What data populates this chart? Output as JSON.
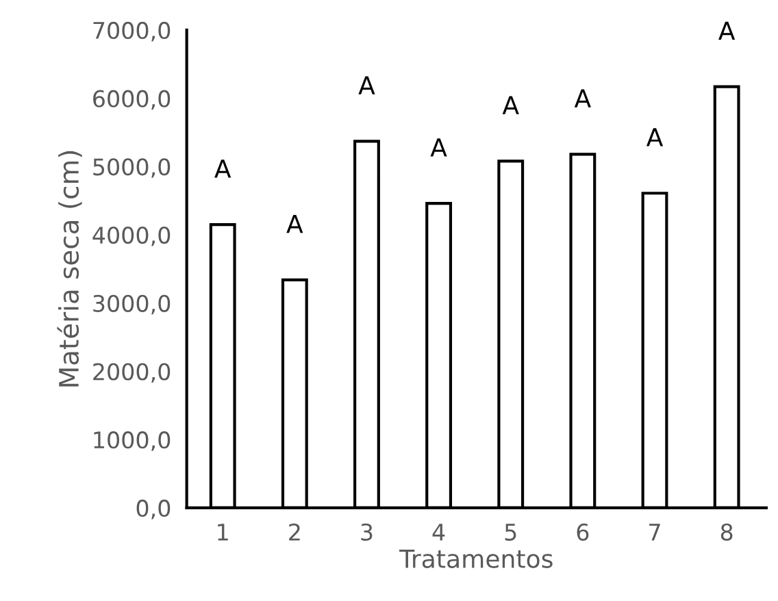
{
  "chart_data": {
    "type": "bar",
    "xlabel": "Tratamentos",
    "ylabel": "Matéria seca (cm)",
    "categories": [
      "1",
      "2",
      "3",
      "4",
      "5",
      "6",
      "7",
      "8"
    ],
    "series": [
      {
        "color": "#ffffff",
        "values": [
          4150,
          3340,
          5370,
          4460,
          5080,
          5180,
          4610,
          6170
        ]
      }
    ],
    "ylim": [
      0,
      7000
    ],
    "yticks": [
      {
        "value": 0,
        "label": "0,0"
      },
      {
        "value": 1000,
        "label": "1000,0"
      },
      {
        "value": 2000,
        "label": "2000,0"
      },
      {
        "value": 3000,
        "label": "3000,0"
      },
      {
        "value": 4000,
        "label": "4000,0"
      },
      {
        "value": 5000,
        "label": "5000,0"
      },
      {
        "value": 6000,
        "label": "6000,0"
      },
      {
        "value": 7000,
        "label": "7000,0"
      }
    ],
    "grid": false,
    "legend": false,
    "annotations": [
      "A",
      "A",
      "A",
      "A",
      "A",
      "A",
      "A",
      "A"
    ]
  }
}
